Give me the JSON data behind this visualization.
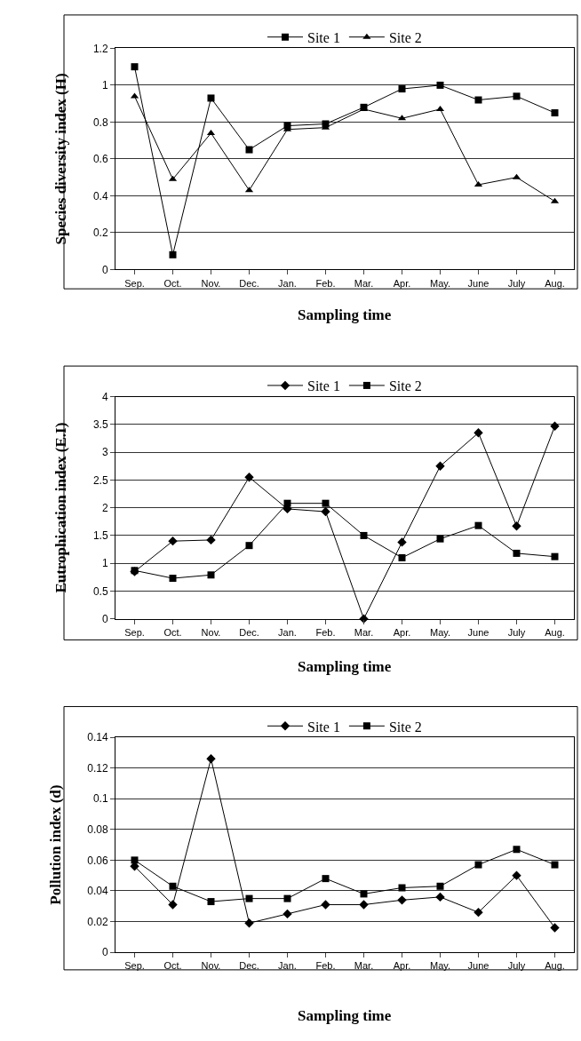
{
  "chart_data": [
    {
      "type": "line",
      "ylabel": "Species diversity index (H)",
      "xlabel": "Sampling time",
      "categories": [
        "Sep.",
        "Oct.",
        "Nov.",
        "Dec.",
        "Jan.",
        "Feb.",
        "Mar.",
        "Apr.",
        "May.",
        "June",
        "July",
        "Aug."
      ],
      "ylim": [
        0,
        1.2
      ],
      "yticks": [
        0,
        0.2,
        0.4,
        0.6,
        0.8,
        1,
        1.2
      ],
      "grid": "y",
      "legend": "top",
      "line_style": "solid",
      "series": [
        {
          "name": "Site 1",
          "color": "#000000",
          "marker": "square",
          "values": [
            1.1,
            0.08,
            0.93,
            0.65,
            0.78,
            0.79,
            0.88,
            0.98,
            1.0,
            0.92,
            0.94,
            0.85
          ]
        },
        {
          "name": "Site 2",
          "color": "#000000",
          "marker": "triangle",
          "values": [
            0.94,
            0.49,
            0.74,
            0.43,
            0.76,
            0.77,
            0.87,
            0.82,
            0.87,
            0.46,
            0.5,
            0.37
          ]
        }
      ]
    },
    {
      "type": "line",
      "ylabel": "Eutrophication index (E.I)",
      "xlabel": "Sampling time",
      "categories": [
        "Sep.",
        "Oct.",
        "Nov.",
        "Dec.",
        "Jan.",
        "Feb.",
        "Mar.",
        "Apr.",
        "May.",
        "June",
        "July",
        "Aug."
      ],
      "ylim": [
        0,
        4
      ],
      "yticks": [
        0,
        0.5,
        1,
        1.5,
        2,
        2.5,
        3,
        3.5,
        4
      ],
      "grid": "y",
      "legend": "top",
      "line_style": "solid",
      "series": [
        {
          "name": "Site 1",
          "color": "#000000",
          "marker": "diamond",
          "values": [
            0.85,
            1.4,
            1.42,
            2.55,
            1.98,
            1.93,
            0,
            1.38,
            2.75,
            3.35,
            1.67,
            3.47
          ]
        },
        {
          "name": "Site 2",
          "color": "#000000",
          "marker": "square",
          "values": [
            0.87,
            0.73,
            0.79,
            1.32,
            2.08,
            2.08,
            1.5,
            1.1,
            1.44,
            1.68,
            1.18,
            1.12
          ]
        }
      ]
    },
    {
      "type": "line",
      "ylabel": "Pollution index (d)",
      "xlabel": "Sampling time",
      "categories": [
        "Sep.",
        "Oct.",
        "Nov.",
        "Dec.",
        "Jan.",
        "Feb.",
        "Mar.",
        "Apr.",
        "May.",
        "June",
        "July",
        "Aug."
      ],
      "ylim": [
        0,
        0.14
      ],
      "yticks": [
        0,
        0.02,
        0.04,
        0.06,
        0.08,
        0.1,
        0.12,
        0.14
      ],
      "grid": "y",
      "legend": "top",
      "line_style": "solid",
      "series": [
        {
          "name": "Site 1",
          "color": "#000000",
          "marker": "diamond",
          "values": [
            0.056,
            0.031,
            0.126,
            0.019,
            0.025,
            0.031,
            0.031,
            0.034,
            0.036,
            0.026,
            0.05,
            0.016
          ]
        },
        {
          "name": "Site 2",
          "color": "#000000",
          "marker": "square",
          "values": [
            0.06,
            0.043,
            0.033,
            0.035,
            0.035,
            0.048,
            0.038,
            0.042,
            0.043,
            0.057,
            0.067,
            0.057
          ]
        }
      ]
    }
  ]
}
